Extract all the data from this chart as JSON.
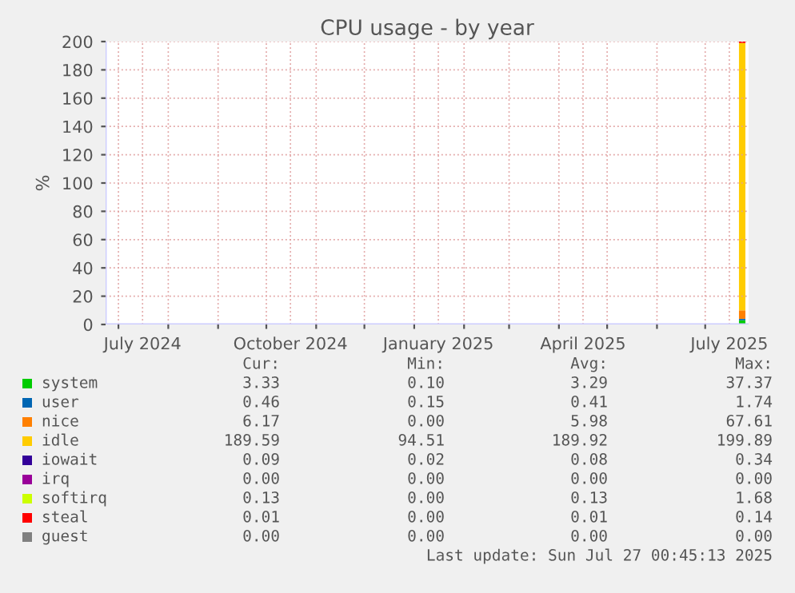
{
  "chart_data": {
    "type": "bar",
    "stacked": true,
    "title": "CPU usage - by year",
    "ylabel": "%",
    "x": [
      "2025-07-24"
    ],
    "series": [
      {
        "name": "system",
        "color": "#00cc00",
        "values": [
          3
        ]
      },
      {
        "name": "user",
        "color": "#0066b3",
        "values": [
          1
        ]
      },
      {
        "name": "nice",
        "color": "#ff8000",
        "values": [
          6
        ]
      },
      {
        "name": "idle",
        "color": "#ffcc00",
        "values": [
          189
        ]
      },
      {
        "name": "iowait",
        "color": "#330099",
        "values": [
          null
        ]
      },
      {
        "name": "irq",
        "color": "#990099",
        "values": [
          null
        ]
      },
      {
        "name": "softirq",
        "color": "#ccff00",
        "values": [
          null
        ]
      },
      {
        "name": "steal",
        "color": "#ff0000",
        "values": [
          1
        ]
      },
      {
        "name": "guest",
        "color": "#808080",
        "values": [
          null
        ]
      }
    ],
    "xlim": [
      "2024-06-23",
      "2025-07-28"
    ],
    "xticks": [
      {
        "value": "2024-07-01",
        "label": null
      },
      {
        "value": "2024-07-16",
        "label": "July 2024"
      },
      {
        "value": "2024-08-01",
        "label": null
      },
      {
        "value": "2024-09-01",
        "label": null
      },
      {
        "value": "2024-10-01",
        "label": null
      },
      {
        "value": "2024-10-16",
        "label": "October 2024"
      },
      {
        "value": "2024-11-01",
        "label": null
      },
      {
        "value": "2024-12-01",
        "label": null
      },
      {
        "value": "2025-01-01",
        "label": null
      },
      {
        "value": "2025-01-16",
        "label": "January 2025"
      },
      {
        "value": "2025-02-01",
        "label": null
      },
      {
        "value": "2025-03-01",
        "label": null
      },
      {
        "value": "2025-04-01",
        "label": null
      },
      {
        "value": "2025-04-16",
        "label": "April 2025"
      },
      {
        "value": "2025-05-01",
        "label": null
      },
      {
        "value": "2025-06-01",
        "label": null
      },
      {
        "value": "2025-07-01",
        "label": null
      },
      {
        "value": "2025-07-16",
        "label": "July 2025"
      }
    ],
    "ylim": [
      0,
      200
    ],
    "yticks": [
      0,
      20,
      40,
      60,
      80,
      100,
      120,
      140,
      160,
      180,
      200
    ],
    "grid": true,
    "legend": "bottom",
    "annotations": [
      "Cur:",
      "Min:",
      "Avg:",
      "Max:",
      "3.33",
      "0.10",
      "3.29",
      "37.37",
      "0.46",
      "0.15",
      "0.41",
      "1.74",
      "6.17",
      "0.00",
      "5.98",
      "67.61",
      "189.59",
      "94.51",
      "189.92",
      "199.89",
      "0.09",
      "0.02",
      "0.08",
      "0.34",
      "0.00",
      "0.00",
      "0.00",
      "0.00",
      "0.13",
      "0.00",
      "0.13",
      "1.68",
      "0.01",
      "0.00",
      "0.01",
      "0.14",
      "0.00",
      "0.00",
      "0.00",
      "0.00",
      "Last update: Sun Jul 27 00:45:13 2025"
    ]
  }
}
